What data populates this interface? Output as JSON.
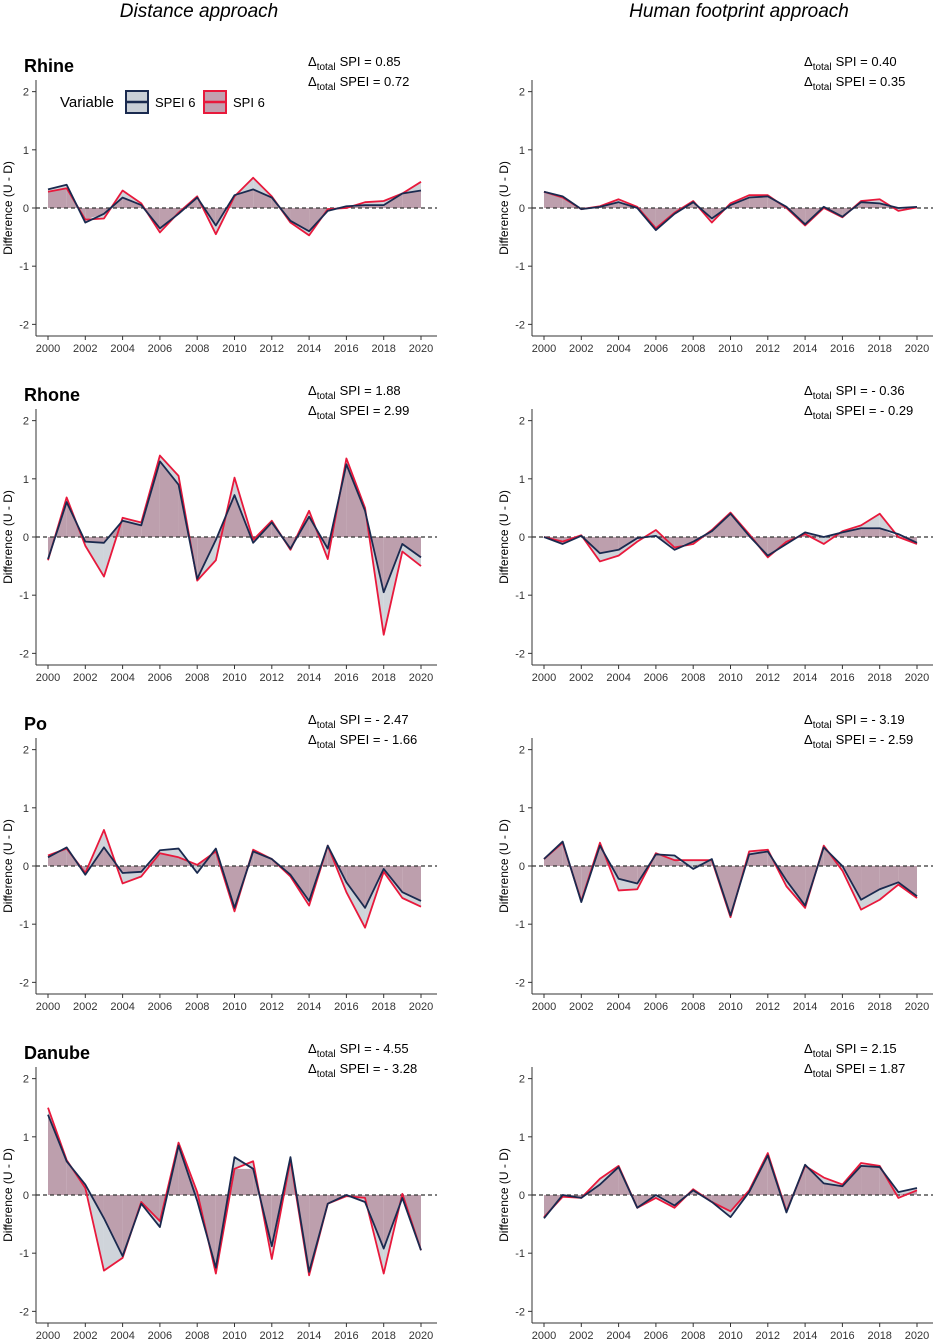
{
  "figure": {
    "column_titles": [
      "Distance approach",
      "Human footprint approach"
    ],
    "legend": {
      "title": "Variable",
      "entries": [
        {
          "label": "SPEI 6",
          "line_color": "#1a2a4f",
          "fill_color": "#c9cfd6"
        },
        {
          "label": "SPI 6",
          "line_color": "#e8193c",
          "fill_color": "#c2a0b0"
        }
      ]
    },
    "colors": {
      "spei_line": "#1a2a4f",
      "spi_line": "#e8193c",
      "fill_above": "#b99aa9",
      "fill_between": "#cfd4da",
      "axis": "#333333",
      "zero_line": "#333333"
    },
    "delta_prefix": "Δ",
    "delta_sub": "total"
  },
  "chart_data": [
    {
      "type": "line",
      "river": "Rhine",
      "approach": "Distance approach",
      "ylabel": "Difference (U - D)",
      "ylim": [
        -2.2,
        2.2
      ],
      "yticks": [
        "-2",
        "-1",
        "0",
        "1",
        "2"
      ],
      "xticks": [
        "2000",
        "2002",
        "2004",
        "2006",
        "2008",
        "2010",
        "2012",
        "2014",
        "2016",
        "2018",
        "2020"
      ],
      "x": [
        2000,
        2001,
        2002,
        2003,
        2004,
        2005,
        2006,
        2007,
        2008,
        2009,
        2010,
        2011,
        2012,
        2013,
        2014,
        2015,
        2016,
        2017,
        2018,
        2019,
        2020
      ],
      "delta_spi": "= 0.85",
      "delta_spei": "= 0.72",
      "series": [
        {
          "name": "SPEI 6",
          "values": [
            0.32,
            0.4,
            -0.25,
            -0.1,
            0.18,
            0.05,
            -0.35,
            -0.1,
            0.18,
            -0.3,
            0.22,
            0.32,
            0.18,
            -0.22,
            -0.4,
            -0.05,
            0.03,
            0.05,
            0.05,
            0.25,
            0.3
          ]
        },
        {
          "name": "SPI 6",
          "values": [
            0.28,
            0.34,
            -0.2,
            -0.18,
            0.3,
            0.08,
            -0.42,
            -0.08,
            0.2,
            -0.45,
            0.2,
            0.52,
            0.2,
            -0.25,
            -0.47,
            -0.02,
            0.0,
            0.1,
            0.12,
            0.25,
            0.45
          ]
        }
      ]
    },
    {
      "type": "line",
      "river": "Rhine",
      "approach": "Human footprint approach",
      "ylabel": "Difference (U - D)",
      "ylim": [
        -2.2,
        2.2
      ],
      "yticks": [
        "-2",
        "-1",
        "0",
        "1",
        "2"
      ],
      "xticks": [
        "2000",
        "2002",
        "2004",
        "2006",
        "2008",
        "2010",
        "2012",
        "2014",
        "2016",
        "2018",
        "2020"
      ],
      "x": [
        2000,
        2001,
        2002,
        2003,
        2004,
        2005,
        2006,
        2007,
        2008,
        2009,
        2010,
        2011,
        2012,
        2013,
        2014,
        2015,
        2016,
        2017,
        2018,
        2019,
        2020
      ],
      "delta_spi": "= 0.40",
      "delta_spei": "= 0.35",
      "series": [
        {
          "name": "SPEI 6",
          "values": [
            0.28,
            0.2,
            -0.02,
            0.02,
            0.1,
            0.0,
            -0.38,
            -0.1,
            0.1,
            -0.18,
            0.05,
            0.18,
            0.2,
            0.02,
            -0.28,
            0.02,
            -0.15,
            0.1,
            0.08,
            0.0,
            0.02
          ]
        },
        {
          "name": "SPI 6",
          "values": [
            0.28,
            0.18,
            -0.02,
            0.03,
            0.15,
            0.02,
            -0.35,
            -0.08,
            0.12,
            -0.25,
            0.08,
            0.22,
            0.22,
            0.0,
            -0.3,
            0.0,
            -0.16,
            0.12,
            0.15,
            -0.05,
            0.01
          ]
        }
      ]
    },
    {
      "type": "line",
      "river": "Rhone",
      "approach": "Distance approach",
      "ylabel": "Difference (U - D)",
      "ylim": [
        -2.2,
        2.2
      ],
      "yticks": [
        "-2",
        "-1",
        "0",
        "1",
        "2"
      ],
      "xticks": [
        "2000",
        "2002",
        "2004",
        "2006",
        "2008",
        "2010",
        "2012",
        "2014",
        "2016",
        "2018",
        "2020"
      ],
      "x": [
        2000,
        2001,
        2002,
        2003,
        2004,
        2005,
        2006,
        2007,
        2008,
        2009,
        2010,
        2011,
        2012,
        2013,
        2014,
        2015,
        2016,
        2017,
        2018,
        2019,
        2020
      ],
      "delta_spi": "= 1.88",
      "delta_spei": "= 2.99",
      "series": [
        {
          "name": "SPEI 6",
          "values": [
            -0.38,
            0.6,
            -0.08,
            -0.1,
            0.28,
            0.2,
            1.3,
            0.9,
            -0.72,
            -0.05,
            0.72,
            -0.1,
            0.25,
            -0.2,
            0.35,
            -0.2,
            1.25,
            0.45,
            -0.95,
            -0.12,
            -0.35
          ]
        },
        {
          "name": "SPI 6",
          "values": [
            -0.4,
            0.68,
            -0.15,
            -0.68,
            0.33,
            0.25,
            1.4,
            1.05,
            -0.75,
            -0.4,
            1.02,
            -0.05,
            0.28,
            -0.22,
            0.45,
            -0.38,
            1.35,
            0.5,
            -1.68,
            -0.25,
            -0.5
          ]
        }
      ]
    },
    {
      "type": "line",
      "river": "Rhone",
      "approach": "Human footprint approach",
      "ylabel": "Difference (U - D)",
      "ylim": [
        -2.2,
        2.2
      ],
      "yticks": [
        "-2",
        "-1",
        "0",
        "1",
        "2"
      ],
      "xticks": [
        "2000",
        "2002",
        "2004",
        "2006",
        "2008",
        "2010",
        "2012",
        "2014",
        "2016",
        "2018",
        "2020"
      ],
      "x": [
        2000,
        2001,
        2002,
        2003,
        2004,
        2005,
        2006,
        2007,
        2008,
        2009,
        2010,
        2011,
        2012,
        2013,
        2014,
        2015,
        2016,
        2017,
        2018,
        2019,
        2020
      ],
      "delta_spi": "= - 0.36",
      "delta_spei": "= - 0.29",
      "series": [
        {
          "name": "SPEI 6",
          "values": [
            0.0,
            -0.12,
            0.02,
            -0.28,
            -0.22,
            -0.02,
            0.02,
            -0.22,
            -0.08,
            0.1,
            0.4,
            0.02,
            -0.32,
            -0.12,
            0.08,
            0.0,
            0.08,
            0.15,
            0.15,
            0.05,
            -0.1
          ]
        },
        {
          "name": "SPI 6",
          "values": [
            0.0,
            -0.08,
            0.03,
            -0.42,
            -0.32,
            -0.08,
            0.12,
            -0.18,
            -0.12,
            0.12,
            0.42,
            0.05,
            -0.35,
            -0.08,
            0.05,
            -0.12,
            0.1,
            0.2,
            0.4,
            0.0,
            -0.12
          ]
        }
      ]
    },
    {
      "type": "line",
      "river": "Po",
      "approach": "Distance approach",
      "ylabel": "Difference (U - D)",
      "ylim": [
        -2.2,
        2.2
      ],
      "yticks": [
        "-2",
        "-1",
        "0",
        "1",
        "2"
      ],
      "xticks": [
        "2000",
        "2002",
        "2004",
        "2006",
        "2008",
        "2010",
        "2012",
        "2014",
        "2016",
        "2018",
        "2020"
      ],
      "x": [
        2000,
        2001,
        2002,
        2003,
        2004,
        2005,
        2006,
        2007,
        2008,
        2009,
        2010,
        2011,
        2012,
        2013,
        2014,
        2015,
        2016,
        2017,
        2018,
        2019,
        2020
      ],
      "delta_spi": "= - 2.47",
      "delta_spei": "= - 1.66",
      "series": [
        {
          "name": "SPEI 6",
          "values": [
            0.15,
            0.32,
            -0.15,
            0.32,
            -0.12,
            -0.1,
            0.27,
            0.3,
            -0.12,
            0.3,
            -0.72,
            0.25,
            0.12,
            -0.15,
            -0.6,
            0.35,
            -0.28,
            -0.72,
            -0.05,
            -0.45,
            -0.6
          ]
        },
        {
          "name": "SPI 6",
          "values": [
            0.18,
            0.3,
            -0.12,
            0.62,
            -0.3,
            -0.18,
            0.22,
            0.15,
            0.02,
            0.25,
            -0.78,
            0.28,
            0.12,
            -0.18,
            -0.68,
            0.35,
            -0.45,
            -1.06,
            -0.1,
            -0.55,
            -0.7
          ]
        }
      ]
    },
    {
      "type": "line",
      "river": "Po",
      "approach": "Human footprint approach",
      "ylabel": "Difference (U - D)",
      "ylim": [
        -2.2,
        2.2
      ],
      "yticks": [
        "-2",
        "-1",
        "0",
        "1",
        "2"
      ],
      "xticks": [
        "2000",
        "2002",
        "2004",
        "2006",
        "2008",
        "2010",
        "2012",
        "2014",
        "2016",
        "2018",
        "2020"
      ],
      "x": [
        2000,
        2001,
        2002,
        2003,
        2004,
        2005,
        2006,
        2007,
        2008,
        2009,
        2010,
        2011,
        2012,
        2013,
        2014,
        2015,
        2016,
        2017,
        2018,
        2019,
        2020
      ],
      "delta_spi": "= - 3.19",
      "delta_spei": "= - 2.59",
      "series": [
        {
          "name": "SPEI 6",
          "values": [
            0.12,
            0.42,
            -0.62,
            0.35,
            -0.22,
            -0.3,
            0.2,
            0.18,
            -0.05,
            0.12,
            -0.85,
            0.2,
            0.25,
            -0.25,
            -0.68,
            0.32,
            0.0,
            -0.58,
            -0.4,
            -0.28,
            -0.52
          ]
        },
        {
          "name": "SPI 6",
          "values": [
            0.12,
            0.4,
            -0.6,
            0.4,
            -0.42,
            -0.4,
            0.22,
            0.1,
            0.1,
            0.1,
            -0.88,
            0.25,
            0.28,
            -0.35,
            -0.72,
            0.35,
            -0.08,
            -0.75,
            -0.58,
            -0.32,
            -0.55
          ]
        }
      ]
    },
    {
      "type": "line",
      "river": "Danube",
      "approach": "Distance approach",
      "ylabel": "Difference (U - D)",
      "ylim": [
        -2.2,
        2.2
      ],
      "yticks": [
        "-2",
        "-1",
        "0",
        "1",
        "2"
      ],
      "xticks": [
        "2000",
        "2002",
        "2004",
        "2006",
        "2008",
        "2010",
        "2012",
        "2014",
        "2016",
        "2018",
        "2020"
      ],
      "x": [
        2000,
        2001,
        2002,
        2003,
        2004,
        2005,
        2006,
        2007,
        2008,
        2009,
        2010,
        2011,
        2012,
        2013,
        2014,
        2015,
        2016,
        2017,
        2018,
        2019,
        2020
      ],
      "delta_spi": "= - 4.55",
      "delta_spei": "= - 3.28",
      "series": [
        {
          "name": "SPEI 6",
          "values": [
            1.38,
            0.58,
            0.18,
            -0.4,
            -1.05,
            -0.15,
            -0.55,
            0.85,
            -0.1,
            -1.25,
            0.65,
            0.45,
            -0.88,
            0.65,
            -1.32,
            -0.15,
            0.0,
            -0.12,
            -0.92,
            -0.05,
            -0.95
          ]
        },
        {
          "name": "SPI 6",
          "values": [
            1.5,
            0.6,
            0.12,
            -1.3,
            -1.08,
            -0.12,
            -0.45,
            0.9,
            0.05,
            -1.35,
            0.45,
            0.58,
            -1.1,
            0.6,
            -1.38,
            -0.15,
            -0.02,
            -0.05,
            -1.35,
            0.02,
            -0.95
          ]
        }
      ]
    },
    {
      "type": "line",
      "river": "Danube",
      "approach": "Human footprint approach",
      "ylabel": "Difference (U - D)",
      "ylim": [
        -2.2,
        2.2
      ],
      "yticks": [
        "-2",
        "-1",
        "0",
        "1",
        "2"
      ],
      "xticks": [
        "2000",
        "2002",
        "2004",
        "2006",
        "2008",
        "2010",
        "2012",
        "2014",
        "2016",
        "2018",
        "2020"
      ],
      "x": [
        2000,
        2001,
        2002,
        2003,
        2004,
        2005,
        2006,
        2007,
        2008,
        2009,
        2010,
        2011,
        2012,
        2013,
        2014,
        2015,
        2016,
        2017,
        2018,
        2019,
        2020
      ],
      "delta_spi": "= 2.15",
      "delta_spei": "= 1.87",
      "series": [
        {
          "name": "SPEI 6",
          "values": [
            -0.4,
            0.0,
            -0.05,
            0.18,
            0.48,
            -0.22,
            0.0,
            -0.18,
            0.08,
            -0.12,
            -0.38,
            0.05,
            0.68,
            -0.3,
            0.52,
            0.2,
            0.15,
            0.5,
            0.48,
            0.05,
            0.12
          ]
        },
        {
          "name": "SPI 6",
          "values": [
            -0.38,
            -0.03,
            -0.05,
            0.28,
            0.5,
            -0.22,
            -0.05,
            -0.22,
            0.1,
            -0.12,
            -0.28,
            0.08,
            0.72,
            -0.28,
            0.5,
            0.3,
            0.18,
            0.55,
            0.5,
            -0.05,
            0.08
          ]
        }
      ]
    }
  ]
}
